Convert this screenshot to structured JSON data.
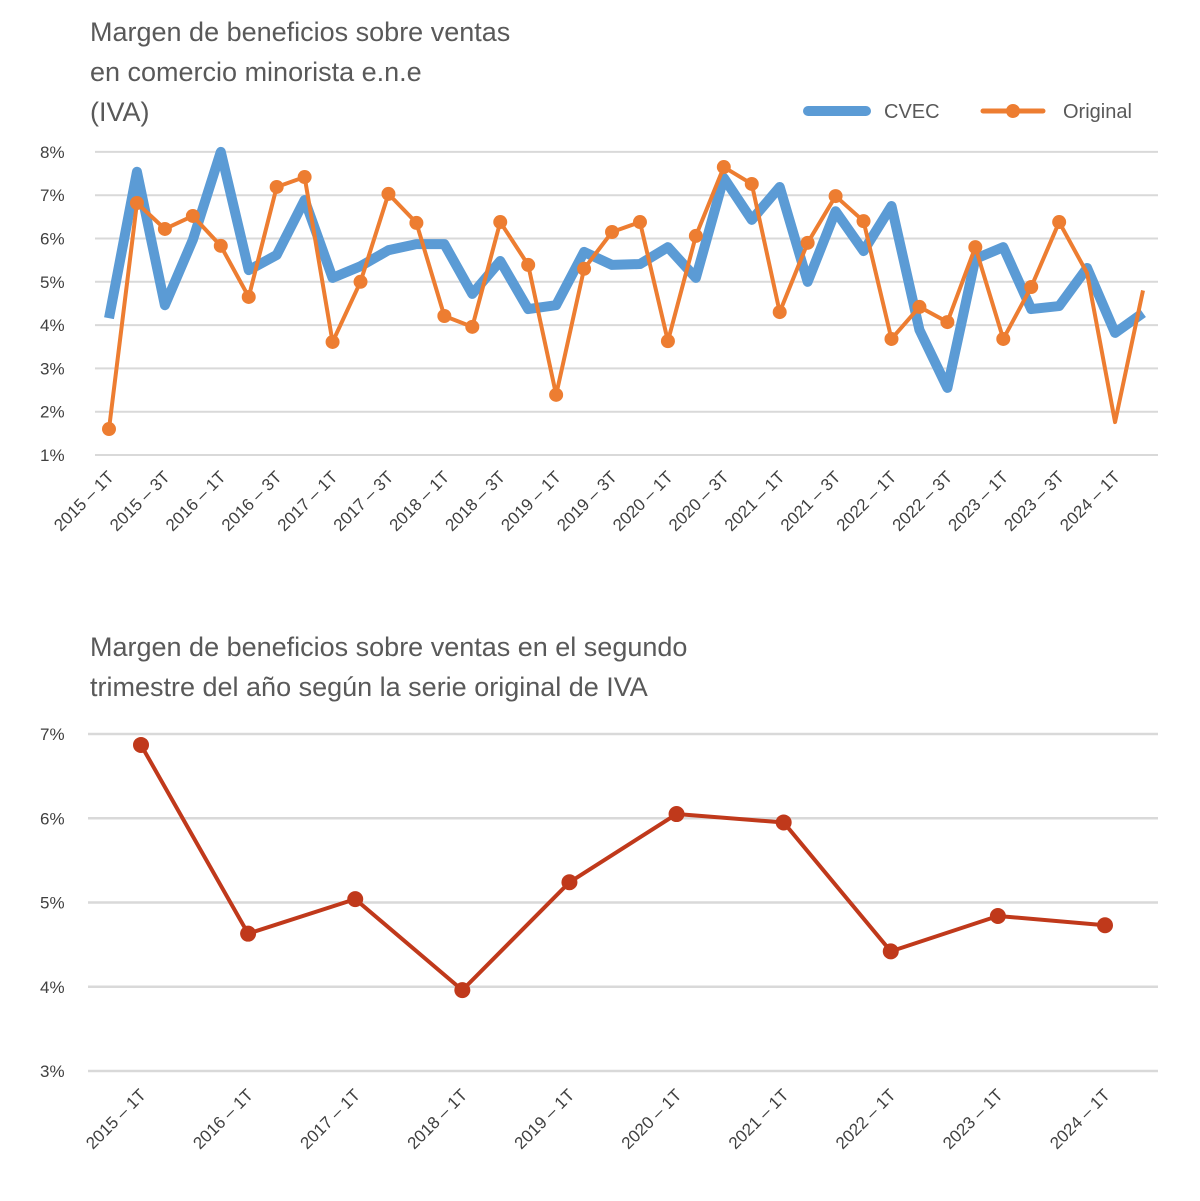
{
  "chart_data": [
    {
      "type": "line",
      "title": "Margen de beneficios sobre ventas en comercio minorista e.n.e (IVA)",
      "title_lines": [
        "Margen de beneficios sobre ventas",
        "en comercio minorista e.n.e",
        "(IVA)"
      ],
      "legend_position": "top-right",
      "grid": true,
      "ylim": [
        1,
        8
      ],
      "y_ticks": [
        "1%",
        "2%",
        "3%",
        "4%",
        "5%",
        "6%",
        "7%",
        "8%"
      ],
      "x_tick_labels": [
        "2015 – 1T",
        "2015 – 3T",
        "2016 – 1T",
        "2016 – 3T",
        "2017 – 1T",
        "2017 – 3T",
        "2018 – 1T",
        "2018 – 3T",
        "2019 – 1T",
        "2019 – 3T",
        "2020 – 1T",
        "2020 – 3T",
        "2021 – 1T",
        "2021 – 3T",
        "2022 – 1T",
        "2022 – 3T",
        "2023 – 1T",
        "2023 – 3T",
        "2024 – 1T"
      ],
      "series": [
        {
          "name": "CVEC",
          "color": "#5B9BD5",
          "values": [
            4.16,
            7.54,
            4.46,
            5.97,
            8.0,
            5.27,
            5.62,
            6.89,
            5.09,
            5.36,
            5.73,
            5.87,
            5.87,
            4.72,
            5.48,
            4.37,
            4.46,
            5.69,
            5.39,
            5.41,
            5.8,
            5.09,
            7.4,
            6.43,
            7.19,
            5.0,
            6.63,
            5.71,
            6.75,
            3.89,
            2.55,
            5.53,
            5.8,
            4.37,
            4.44,
            5.32,
            3.82,
            4.28
          ]
        },
        {
          "name": "Original",
          "color": "#ED7D31",
          "values": [
            1.6,
            6.82,
            6.22,
            6.52,
            5.83,
            4.65,
            7.19,
            7.42,
            3.61,
            5.0,
            7.03,
            6.36,
            4.21,
            3.96,
            6.38,
            5.39,
            2.39,
            5.3,
            6.15,
            6.38,
            3.63,
            6.06,
            7.65,
            7.26,
            4.3,
            5.9,
            6.98,
            6.4,
            3.68,
            4.42,
            4.07,
            5.8,
            3.68,
            4.88,
            6.38,
            5.2,
            1.76,
            4.8
          ]
        }
      ]
    },
    {
      "type": "line",
      "title": "Margen de beneficios sobre ventas en el segundo trimestre del año según la serie original de IVA",
      "title_lines": [
        "Margen de beneficios sobre ventas en el segundo",
        "trimestre del año según la serie original de IVA"
      ],
      "grid": true,
      "ylim": [
        3,
        7
      ],
      "y_ticks": [
        "3%",
        "4%",
        "5%",
        "6%",
        "7%"
      ],
      "categories": [
        "2015 – 1T",
        "2016 – 1T",
        "2017 – 1T",
        "2018 – 1T",
        "2019 – 1T",
        "2020 – 1T",
        "2021 – 1T",
        "2022 – 1T",
        "2023 – 1T",
        "2024 – 1T"
      ],
      "series": [
        {
          "color": "#C0391B",
          "values": [
            6.87,
            4.63,
            5.04,
            3.96,
            5.24,
            6.05,
            5.95,
            4.42,
            4.84,
            4.73
          ]
        }
      ]
    }
  ]
}
